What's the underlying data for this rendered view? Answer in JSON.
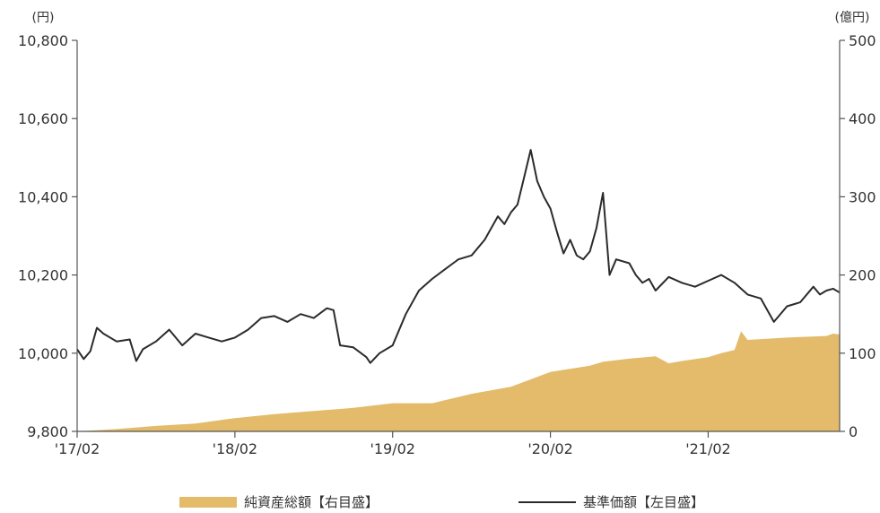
{
  "chart_data": {
    "type": "line",
    "title": "",
    "left_axis": {
      "unit": "(円)",
      "ylim": [
        9800,
        10800
      ],
      "ticks": [
        "9,800",
        "10,000",
        "10,200",
        "10,400",
        "10,600",
        "10,800"
      ]
    },
    "right_axis": {
      "unit": "(億円)",
      "ylim": [
        0,
        500
      ],
      "ticks": [
        "0",
        "100",
        "200",
        "300",
        "400",
        "500"
      ]
    },
    "x_axis": {
      "ticks": [
        "'17/02",
        "'18/02",
        "'19/02",
        "'20/02",
        "'21/02"
      ]
    },
    "grid": false,
    "legend_position": "bottom",
    "series": [
      {
        "name": "純資産総額【右目盛】",
        "type": "area",
        "axis": "right",
        "color": "#e3bb6a",
        "x": [
          0,
          3,
          6,
          9,
          12,
          15,
          18,
          21,
          24,
          27,
          30,
          31,
          33,
          36,
          39,
          40,
          42,
          44,
          45,
          46,
          48,
          49,
          50,
          50.5,
          51,
          54,
          57,
          57.5,
          58
        ],
        "values": [
          0,
          3,
          7,
          10,
          17,
          22,
          26,
          30,
          36,
          36,
          48,
          51,
          57,
          76,
          84,
          89,
          93,
          96,
          87,
          90,
          95,
          100,
          104,
          128,
          117,
          120,
          122,
          125,
          124
        ]
      },
      {
        "name": "基準価額【左目盛】",
        "type": "line",
        "axis": "left",
        "color": "#2b2b2b",
        "x": [
          0,
          0.5,
          1,
          1.5,
          2,
          3,
          4,
          4.5,
          5,
          6,
          7,
          8,
          9,
          10,
          11,
          12,
          13,
          14,
          15,
          16,
          17,
          18,
          19,
          19.5,
          20,
          21,
          22,
          22.3,
          23,
          24,
          25,
          26,
          27,
          28,
          29,
          30,
          31,
          32,
          32.5,
          33,
          33.5,
          34,
          34.5,
          35,
          35.5,
          36,
          36.5,
          37,
          37.5,
          38,
          38.5,
          39,
          39.5,
          40,
          40.5,
          41,
          42,
          42.5,
          43,
          43.5,
          44,
          45,
          46,
          47,
          48,
          49,
          50,
          51,
          52,
          53,
          54,
          55,
          56,
          56.5,
          57,
          57.5,
          58
        ],
        "values": [
          10010,
          9985,
          10005,
          10065,
          10050,
          10030,
          10035,
          9980,
          10010,
          10030,
          10060,
          10020,
          10050,
          10040,
          10030,
          10040,
          10060,
          10090,
          10095,
          10080,
          10100,
          10090,
          10115,
          10110,
          10020,
          10015,
          9990,
          9975,
          10000,
          10020,
          10100,
          10160,
          10190,
          10215,
          10240,
          10250,
          10290,
          10350,
          10330,
          10360,
          10380,
          10450,
          10520,
          10440,
          10400,
          10370,
          10310,
          10255,
          10290,
          10250,
          10240,
          10260,
          10320,
          10410,
          10200,
          10240,
          10230,
          10200,
          10180,
          10190,
          10160,
          10195,
          10180,
          10170,
          10185,
          10200,
          10180,
          10150,
          10140,
          10080,
          10120,
          10130,
          10170,
          10150,
          10160,
          10165,
          10155
        ]
      }
    ]
  },
  "legend": {
    "nav_label": "純資産総額【右目盛】",
    "price_label": "基準価額【左目盛】"
  }
}
